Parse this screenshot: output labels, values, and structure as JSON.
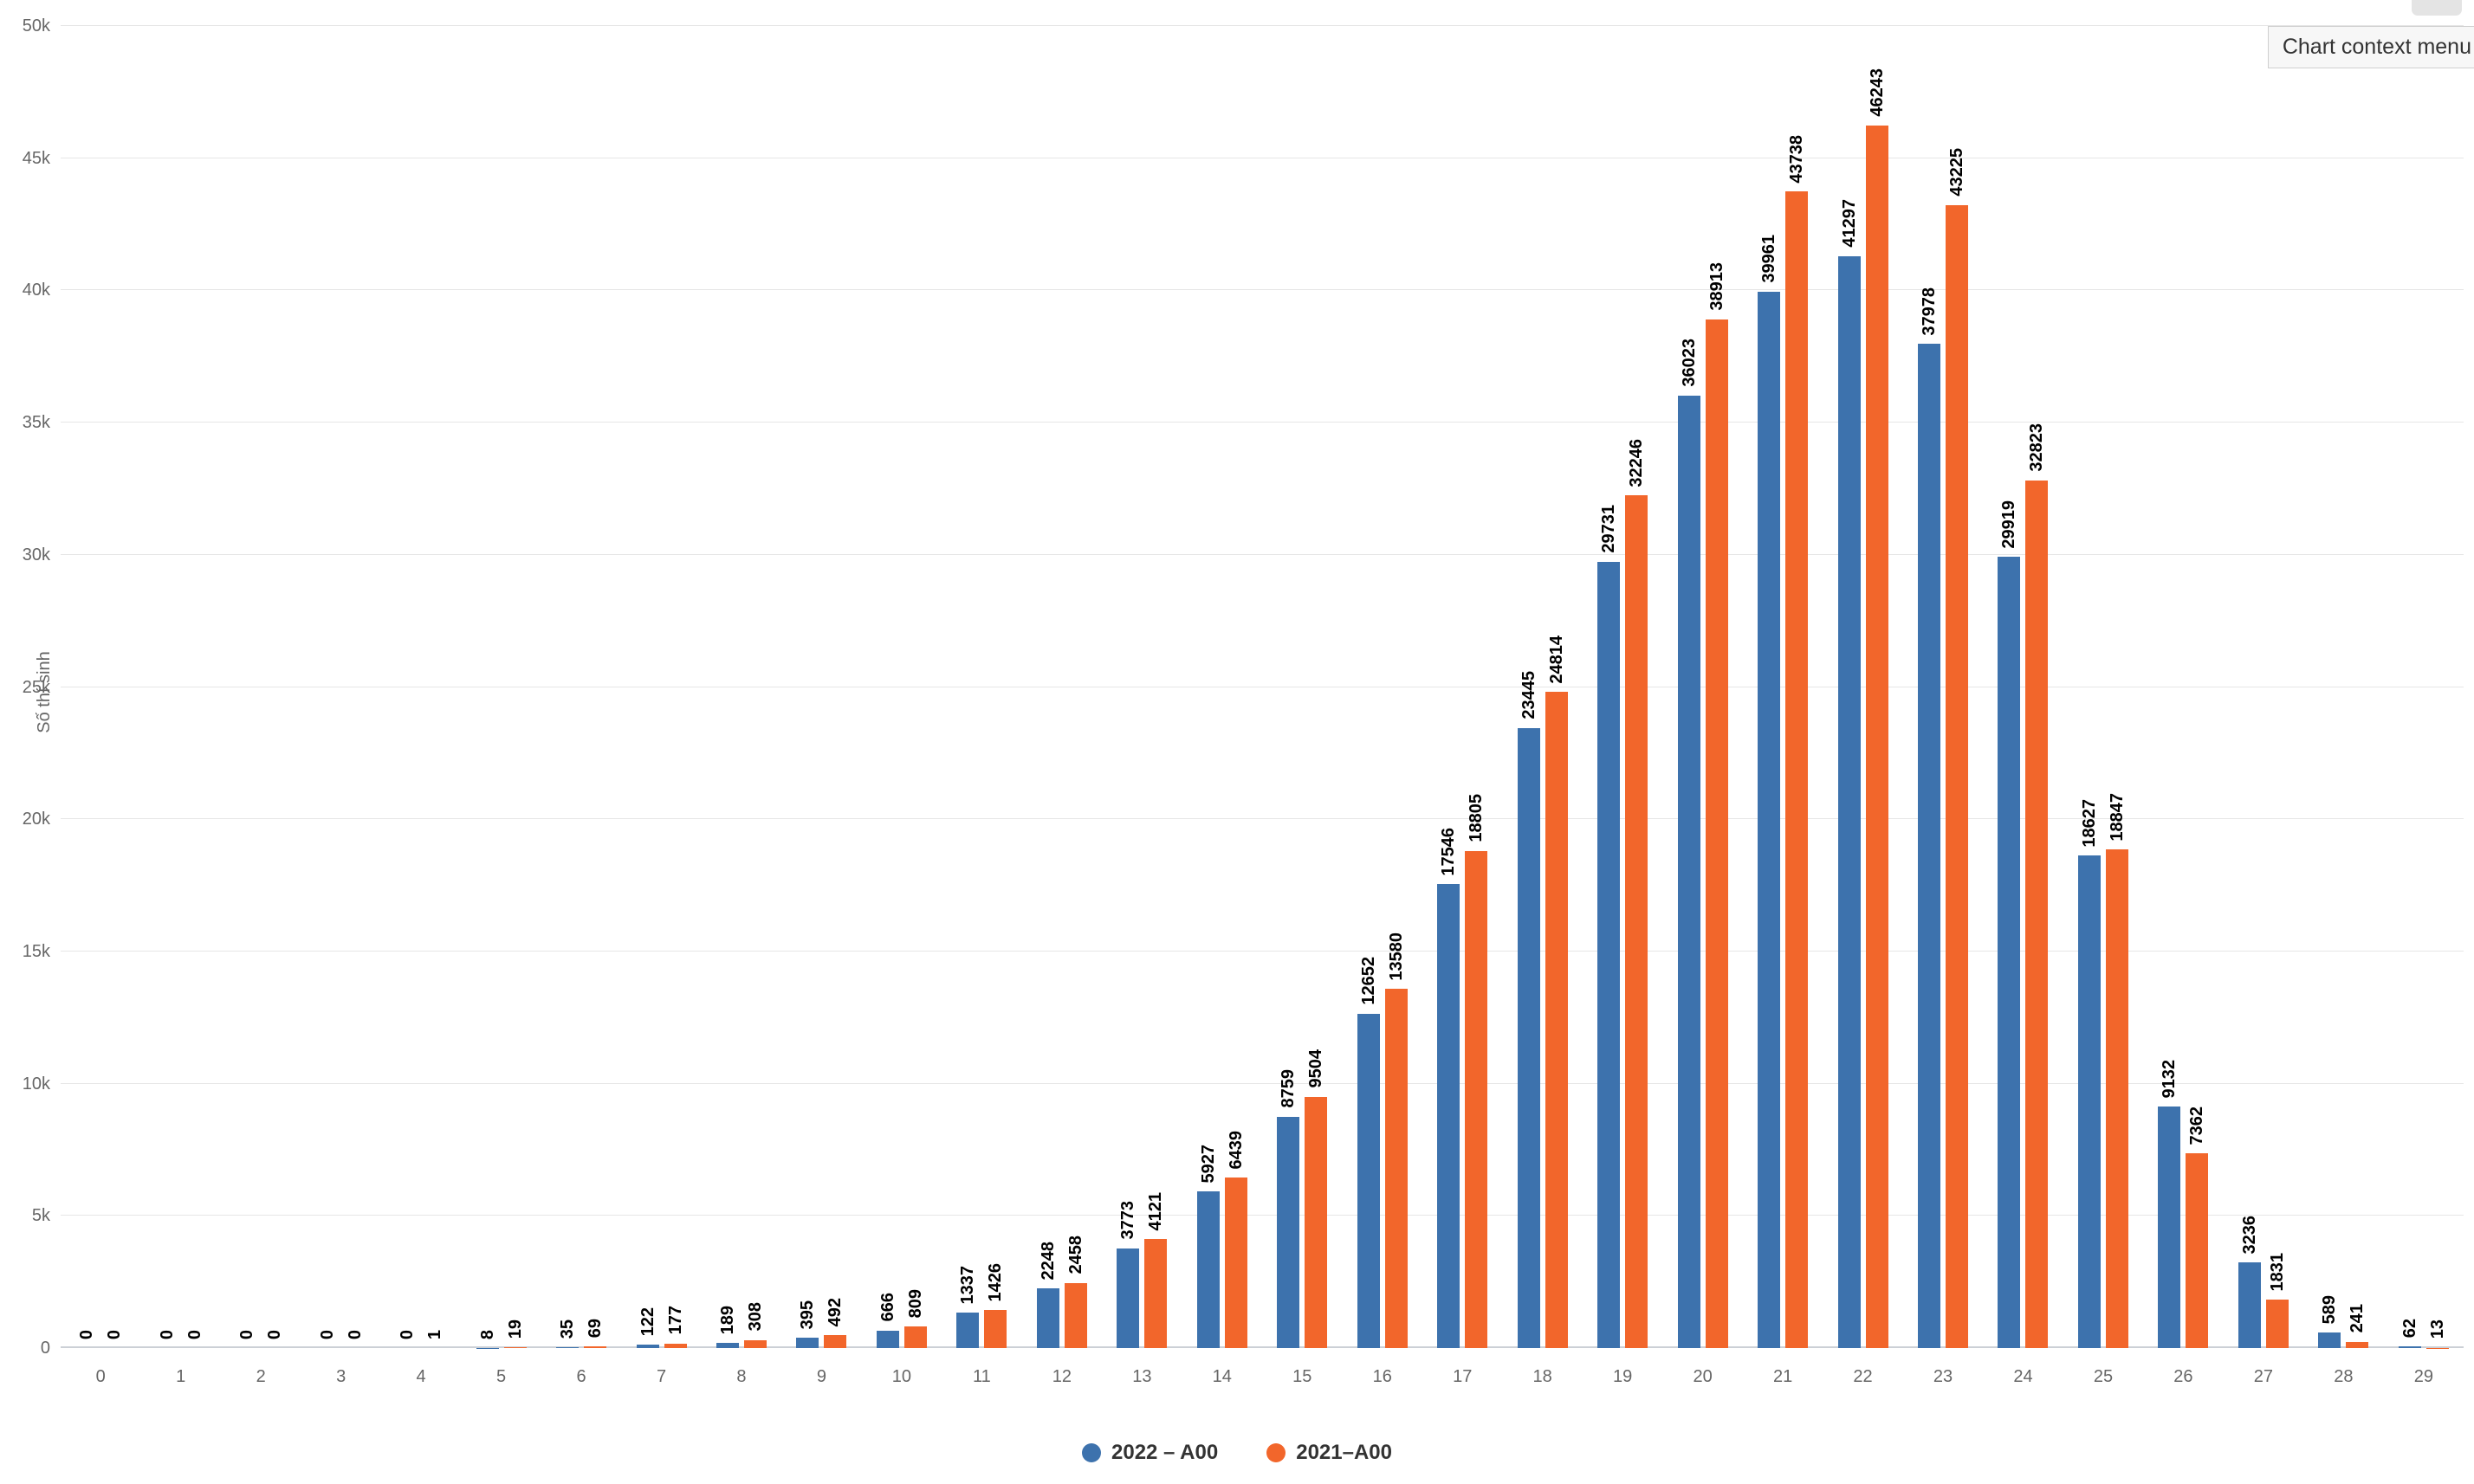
{
  "header": {
    "context_menu_tooltip": "Chart context menu",
    "menu_button_icon": "hamburger-menu-icon"
  },
  "chart_data": {
    "type": "bar",
    "title": "",
    "xlabel": "",
    "ylabel": "Số thí sinh",
    "ylim": [
      0,
      50000
    ],
    "yticks": [
      "0",
      "5k",
      "10k",
      "15k",
      "20k",
      "25k",
      "30k",
      "35k",
      "40k",
      "45k",
      "50k"
    ],
    "grid": true,
    "legend_position": "bottom",
    "data_labels": "rotated-vertical",
    "categories": [
      "0",
      "1",
      "2",
      "3",
      "4",
      "5",
      "6",
      "7",
      "8",
      "9",
      "10",
      "11",
      "12",
      "13",
      "14",
      "15",
      "16",
      "17",
      "18",
      "19",
      "20",
      "21",
      "22",
      "23",
      "24",
      "25",
      "26",
      "27",
      "28",
      "29"
    ],
    "series": [
      {
        "name": "2022 – A00",
        "color": "#3d72ad",
        "values": [
          0,
          0,
          0,
          0,
          0,
          8,
          35,
          122,
          189,
          395,
          666,
          1337,
          2248,
          3773,
          5927,
          8759,
          12652,
          17546,
          23445,
          29731,
          36023,
          39961,
          41297,
          37978,
          29919,
          18627,
          9132,
          3236,
          589,
          62
        ]
      },
      {
        "name": "2021–A00",
        "color": "#f2662b",
        "values": [
          0,
          0,
          0,
          0,
          1,
          19,
          69,
          177,
          308,
          492,
          809,
          1426,
          2458,
          4121,
          6439,
          9504,
          13580,
          18805,
          24814,
          32246,
          38913,
          43738,
          46243,
          43225,
          32823,
          18847,
          7362,
          1831,
          241,
          13
        ]
      }
    ]
  }
}
